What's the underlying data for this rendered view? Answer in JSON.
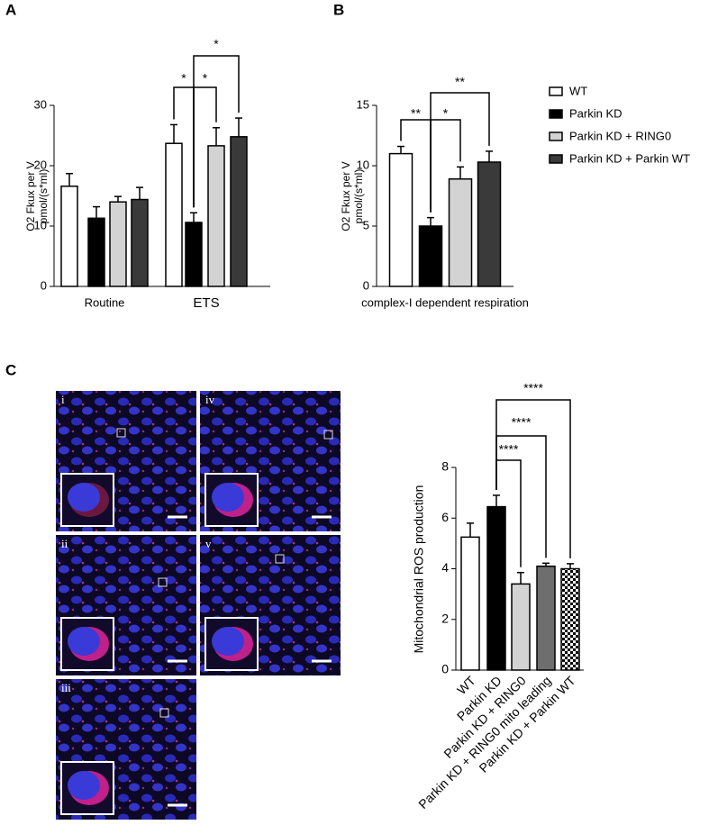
{
  "panel_labels": [
    "A",
    "B",
    "C"
  ],
  "micrograph_labels": [
    "i",
    "iv",
    "ii",
    "v",
    "iii"
  ],
  "chart_data": [
    {
      "type": "bar",
      "categories": [
        "Routine",
        "ETS"
      ],
      "y_label_lines": [
        "O2 Fkux per V",
        "pmol/(s*ml)"
      ],
      "series": [
        {
          "color": "#ffffff",
          "values": [
            16.6,
            23.7
          ],
          "errors": [
            2.1,
            3.1
          ]
        },
        {
          "color": "#000000",
          "values": [
            11.3,
            10.6
          ],
          "errors": [
            1.9,
            1.6
          ]
        },
        {
          "color": "#d3d3d3",
          "values": [
            14.0,
            23.3
          ],
          "errors": [
            0.9,
            3.0
          ]
        },
        {
          "color": "#3a3a3a",
          "values": [
            14.4,
            24.8
          ],
          "errors": [
            2.0,
            3.1
          ]
        }
      ],
      "ylim": [
        0,
        30
      ],
      "yticks": [
        0,
        10,
        20,
        30
      ],
      "annotations": [
        "*",
        "*",
        "*"
      ]
    },
    {
      "type": "bar",
      "categories": [
        "complex-I dependent respiration"
      ],
      "y_label_lines": [
        "O2 Fkux per V",
        "pmol/(s*ml)"
      ],
      "series": [
        {
          "name": "WT",
          "color": "#ffffff",
          "values": [
            11.0
          ],
          "errors": [
            0.6
          ]
        },
        {
          "name": "Parkin KD",
          "color": "#000000",
          "values": [
            5.0
          ],
          "errors": [
            0.7
          ]
        },
        {
          "name": "Parkin KD + RING0",
          "color": "#d3d3d3",
          "values": [
            8.9
          ],
          "errors": [
            1.0
          ]
        },
        {
          "name": "Parkin KD + Parkin WT",
          "color": "#3a3a3a",
          "values": [
            10.3
          ],
          "errors": [
            0.9
          ]
        }
      ],
      "ylim": [
        0,
        15
      ],
      "yticks": [
        0,
        5,
        10,
        15
      ],
      "legend": "right",
      "annotations": [
        "**",
        "*",
        "**"
      ]
    },
    {
      "type": "bar",
      "categories": [
        "WT",
        "Parkin KD",
        "Parkin KD + RING0",
        "Parkin KD + RING0 mito leading",
        "Parkin KD + Parkin WT"
      ],
      "y_label_lines": [
        "Mitochondrial ROS production"
      ],
      "values": [
        5.25,
        6.45,
        3.4,
        4.1,
        4.0
      ],
      "errors": [
        0.55,
        0.45,
        0.45,
        0.12,
        0.2
      ],
      "colors": [
        "#ffffff",
        "#000000",
        "#d3d3d3",
        "#6e6e6e",
        "checkered"
      ],
      "ylim": [
        0,
        8
      ],
      "yticks": [
        0,
        2,
        4,
        6,
        8
      ],
      "annotations": [
        "****",
        "****",
        "****"
      ]
    }
  ]
}
